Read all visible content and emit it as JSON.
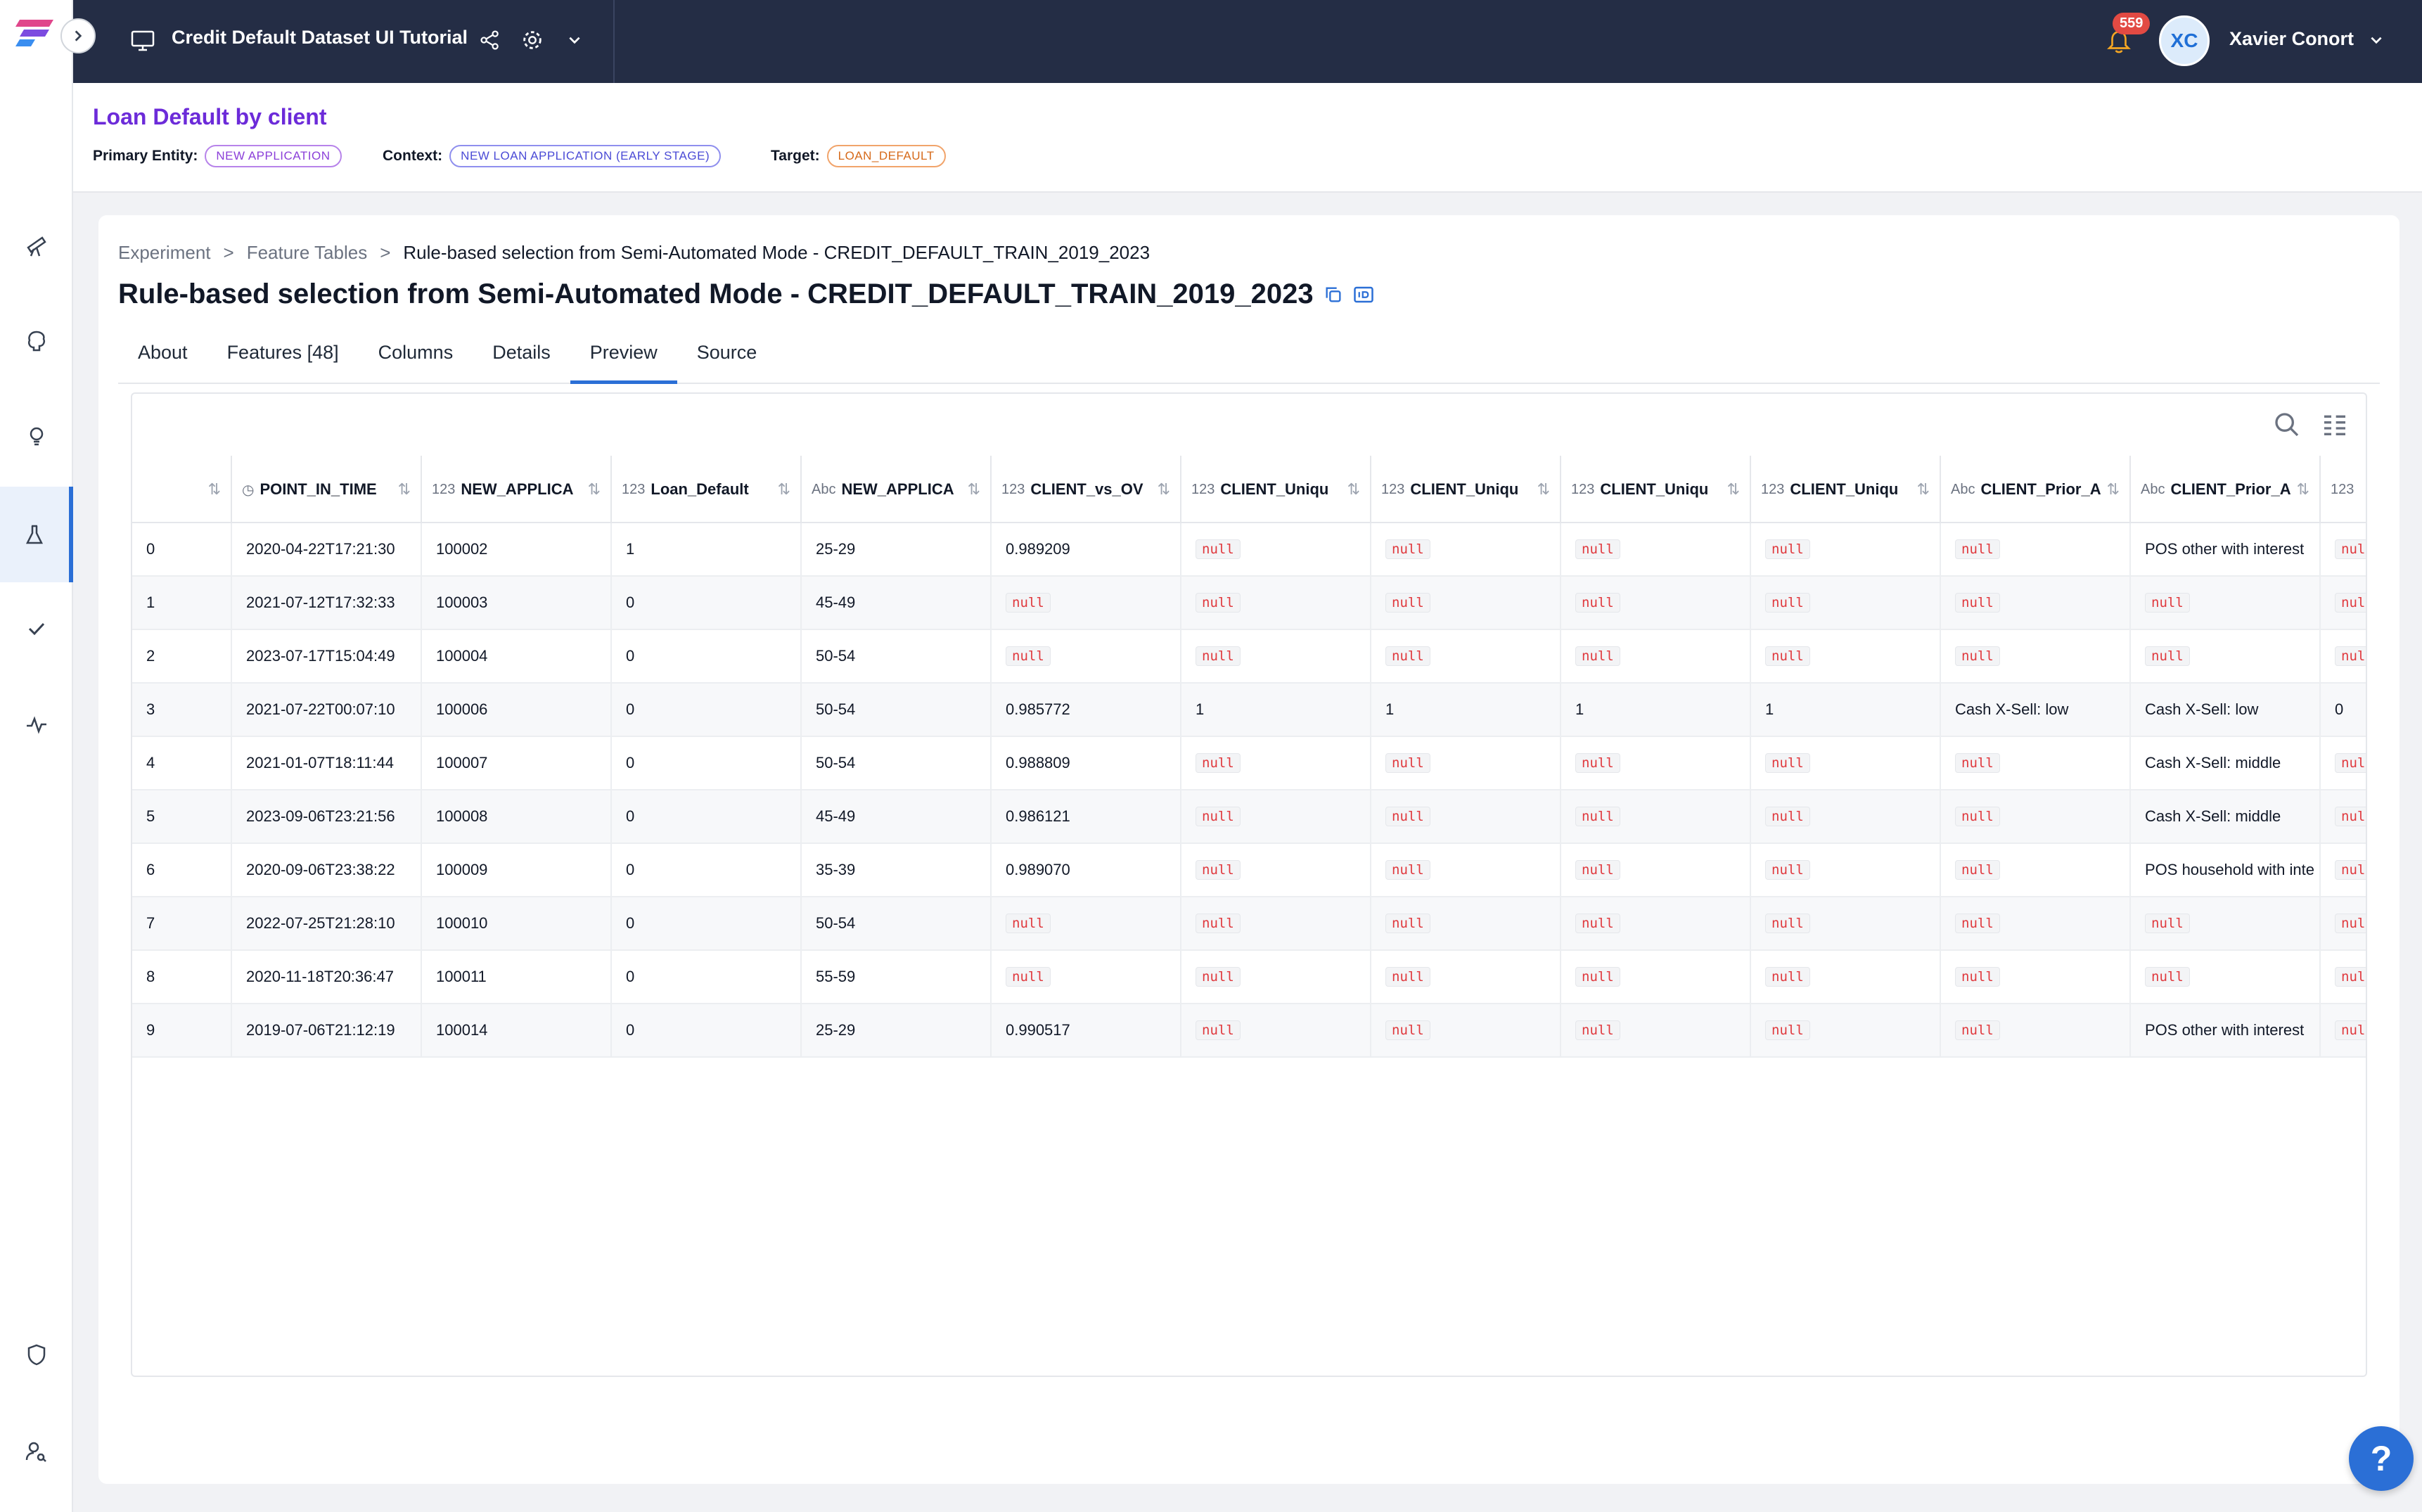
{
  "header": {
    "project_title": "Credit Default Dataset UI Tutorial",
    "notification_count": "559",
    "user_initials": "XC",
    "user_name": "Xavier Conort"
  },
  "usecase": {
    "title": "Loan Default by client",
    "primary_entity_label": "Primary Entity:",
    "primary_entity": "NEW APPLICATION",
    "context_label": "Context:",
    "context": "NEW LOAN APPLICATION (EARLY STAGE)",
    "target_label": "Target:",
    "target": "LOAN_DEFAULT"
  },
  "breadcrumb": {
    "items": [
      "Experiment",
      "Feature Tables"
    ],
    "current": "Rule-based selection from Semi-Automated Mode - CREDIT_DEFAULT_TRAIN_2019_2023"
  },
  "page": {
    "title": "Rule-based selection from Semi-Automated Mode - CREDIT_DEFAULT_TRAIN_2019_2023"
  },
  "tabs": [
    {
      "label": "About"
    },
    {
      "label": "Features [48]"
    },
    {
      "label": "Columns"
    },
    {
      "label": "Details"
    },
    {
      "label": "Preview",
      "active": true
    },
    {
      "label": "Source"
    }
  ],
  "table": {
    "columns": [
      {
        "type": "",
        "name": ""
      },
      {
        "type": "◷",
        "name": "POINT_IN_TIME"
      },
      {
        "type": "123",
        "name": "NEW_APPLICA"
      },
      {
        "type": "123",
        "name": "Loan_Default"
      },
      {
        "type": "Abc",
        "name": "NEW_APPLICA"
      },
      {
        "type": "123",
        "name": "CLIENT_vs_OV"
      },
      {
        "type": "123",
        "name": "CLIENT_Uniqu"
      },
      {
        "type": "123",
        "name": "CLIENT_Uniqu"
      },
      {
        "type": "123",
        "name": "CLIENT_Uniqu"
      },
      {
        "type": "123",
        "name": "CLIENT_Uniqu"
      },
      {
        "type": "Abc",
        "name": "CLIENT_Prior_A"
      },
      {
        "type": "Abc",
        "name": "CLIENT_Prior_A"
      },
      {
        "type": "123",
        "name": ""
      }
    ],
    "rows": [
      [
        "0",
        "2020-04-22T17:21:30",
        "100002",
        "1",
        "25-29",
        "0.989209",
        "null",
        "null",
        "null",
        "null",
        "null",
        "POS other with interest",
        "null"
      ],
      [
        "1",
        "2021-07-12T17:32:33",
        "100003",
        "0",
        "45-49",
        "null",
        "null",
        "null",
        "null",
        "null",
        "null",
        "null",
        "null"
      ],
      [
        "2",
        "2023-07-17T15:04:49",
        "100004",
        "0",
        "50-54",
        "null",
        "null",
        "null",
        "null",
        "null",
        "null",
        "null",
        "null"
      ],
      [
        "3",
        "2021-07-22T00:07:10",
        "100006",
        "0",
        "50-54",
        "0.985772",
        "1",
        "1",
        "1",
        "1",
        "Cash X-Sell: low",
        "Cash X-Sell: low",
        "0"
      ],
      [
        "4",
        "2021-01-07T18:11:44",
        "100007",
        "0",
        "50-54",
        "0.988809",
        "null",
        "null",
        "null",
        "null",
        "null",
        "Cash X-Sell: middle",
        "null"
      ],
      [
        "5",
        "2023-09-06T23:21:56",
        "100008",
        "0",
        "45-49",
        "0.986121",
        "null",
        "null",
        "null",
        "null",
        "null",
        "Cash X-Sell: middle",
        "null"
      ],
      [
        "6",
        "2020-09-06T23:38:22",
        "100009",
        "0",
        "35-39",
        "0.989070",
        "null",
        "null",
        "null",
        "null",
        "null",
        "POS household with inte",
        "null"
      ],
      [
        "7",
        "2022-07-25T21:28:10",
        "100010",
        "0",
        "50-54",
        "null",
        "null",
        "null",
        "null",
        "null",
        "null",
        "null",
        "null"
      ],
      [
        "8",
        "2020-11-18T20:36:47",
        "100011",
        "0",
        "55-59",
        "null",
        "null",
        "null",
        "null",
        "null",
        "null",
        "null",
        "null"
      ],
      [
        "9",
        "2019-07-06T21:12:19",
        "100014",
        "0",
        "25-29",
        "0.990517",
        "null",
        "null",
        "null",
        "null",
        "null",
        "POS other with interest",
        "null"
      ]
    ]
  },
  "help": {
    "label": "?"
  }
}
